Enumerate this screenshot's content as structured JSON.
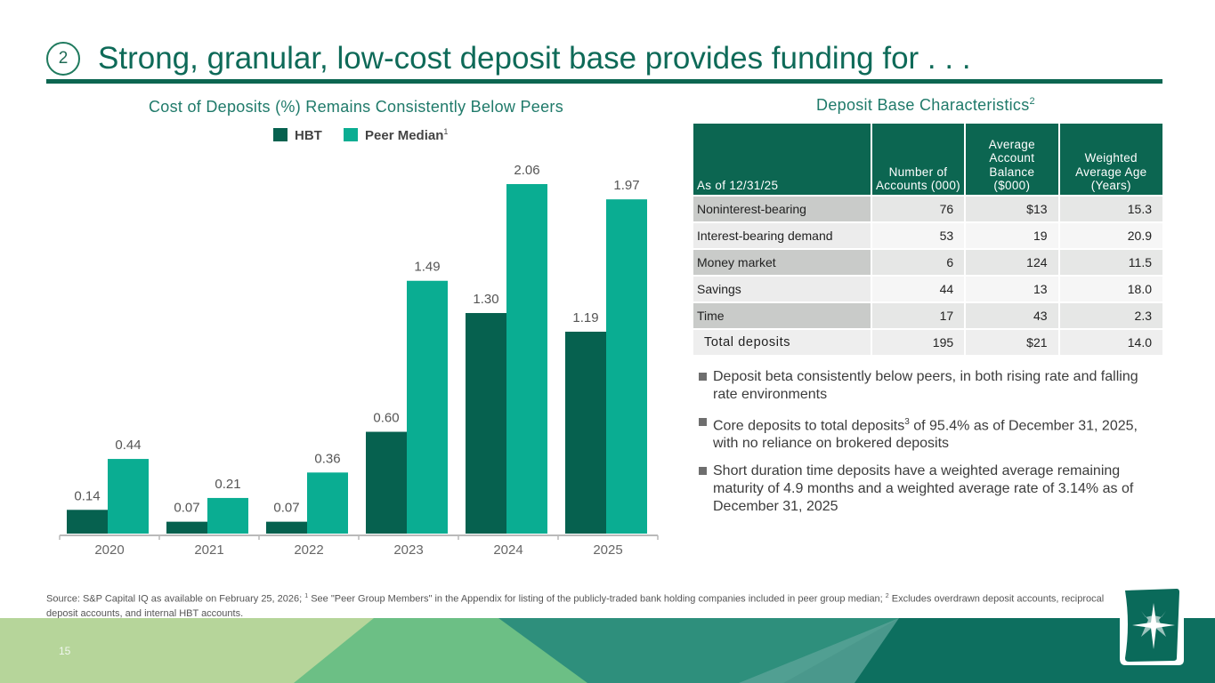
{
  "header": {
    "section_number": "2",
    "title": "Strong, granular, low-cost deposit base provides funding for . . ."
  },
  "colors": {
    "hbt": "#06614f",
    "peer": "#0aad92",
    "brand": "#0c6651"
  },
  "chart_data": {
    "type": "bar",
    "title": "Cost of Deposits (%) Remains Consistently Below Peers",
    "categories": [
      "2020",
      "2021",
      "2022",
      "2023",
      "2024",
      "2025"
    ],
    "series": [
      {
        "name": "HBT",
        "values": [
          0.14,
          0.07,
          0.07,
          0.6,
          1.3,
          1.19
        ],
        "labels": [
          "0.14",
          "0.07",
          "0.07",
          "0.60",
          "1.30",
          "1.19"
        ]
      },
      {
        "name": "Peer Median",
        "values": [
          0.44,
          0.21,
          0.36,
          1.49,
          2.06,
          1.97
        ],
        "labels": [
          "0.44",
          "0.21",
          "0.36",
          "1.49",
          "2.06",
          "1.97"
        ]
      }
    ],
    "legend_superscript": "1",
    "legend_position": "top",
    "grid": false,
    "ylim": [
      0,
      2.06
    ]
  },
  "table": {
    "title": "Deposit Base Characteristics",
    "title_superscript": "2",
    "headers": [
      "As of 12/31/25",
      "Number of Accounts (000)",
      "Average Account Balance ($000)",
      "Weighted Average Age (Years)"
    ],
    "rows": [
      [
        "Noninterest-bearing",
        "76",
        "$13",
        "15.3"
      ],
      [
        "Interest-bearing demand",
        "53",
        "19",
        "20.9"
      ],
      [
        "Money market",
        "6",
        "124",
        "11.5"
      ],
      [
        "Savings",
        "44",
        "13",
        "18.0"
      ],
      [
        "Time",
        "17",
        "43",
        "2.3"
      ]
    ],
    "total": [
      "Total deposits",
      "195",
      "$21",
      "14.0"
    ]
  },
  "bullets": {
    "b1": "Deposit beta consistently below peers, in both rising rate and falling rate environments",
    "b2_pre": "Core deposits to total deposits",
    "b2_sup": "3",
    "b2_post": " of 95.4% as of December 31, 2025, with no reliance on brokered deposits",
    "b3": "Short duration time deposits have a weighted average remaining maturity of 4.9 months and a weighted average rate of 3.14% as of December 31, 2025"
  },
  "footnote": {
    "part1": "Source: S&P Capital IQ as available on February 25, 2026; ",
    "sup1": "1",
    "part2": " See \"Peer Group Members\" in the Appendix for listing of the publicly-traded bank holding companies included in peer group median; ",
    "sup2": "2",
    "part3": " Excludes overdrawn deposit accounts, reciprocal deposit accounts, and internal HBT accounts."
  },
  "page_number": "15"
}
